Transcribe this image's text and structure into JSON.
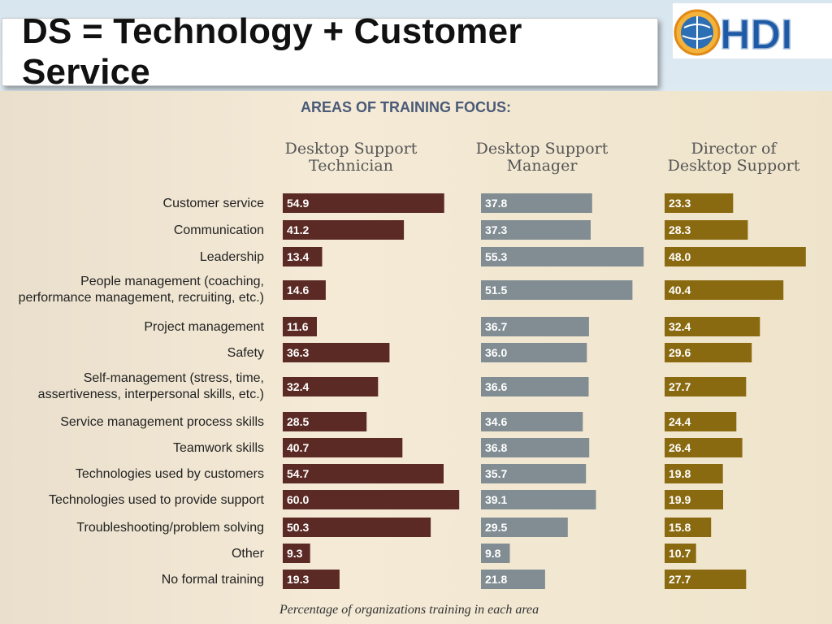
{
  "slide": {
    "title": "DS = Technology + Customer Service",
    "logo_text": "HDI"
  },
  "colors": {
    "technician": "#5b2a24",
    "manager": "#818d92",
    "director": "#8a6a10",
    "heading": "#4a5a78"
  },
  "chart_data": {
    "type": "bar",
    "orientation": "horizontal",
    "title": "AREAS OF TRAINING FOCUS:",
    "footnote": "Percentage of organizations training in each area",
    "categories": [
      [
        "Customer service"
      ],
      [
        "Communication"
      ],
      [
        "Leadership"
      ],
      [
        "People management (coaching,",
        "performance management, recruiting, etc.)"
      ],
      [
        "Project management"
      ],
      [
        "Safety"
      ],
      [
        "Self-management (stress, time,",
        "assertiveness, interpersonal skills, etc.)"
      ],
      [
        "Service management process skills"
      ],
      [
        "Teamwork skills"
      ],
      [
        "Technologies used by customers"
      ],
      [
        "Technologies used to provide support"
      ],
      [
        "Troubleshooting/problem solving"
      ],
      [
        "Other"
      ],
      [
        "No formal training"
      ]
    ],
    "series": [
      {
        "name": [
          "Desktop Support",
          "Technician"
        ],
        "color": "#5b2a24",
        "values": [
          54.9,
          41.2,
          13.4,
          14.6,
          11.6,
          36.3,
          32.4,
          28.5,
          40.7,
          54.7,
          60.0,
          50.3,
          9.3,
          19.3
        ],
        "labels": [
          "54.9",
          "41.2",
          "13.4",
          "14.6",
          "11.6",
          "36.3",
          "32.4",
          "28.5",
          "40.7",
          "54.7",
          "60.0",
          "50.3",
          "9.3",
          "19.3"
        ]
      },
      {
        "name": [
          "Desktop Support",
          "Manager"
        ],
        "color": "#818d92",
        "values": [
          37.8,
          37.3,
          55.3,
          51.5,
          36.7,
          36.0,
          36.6,
          34.6,
          36.8,
          35.7,
          39.1,
          29.5,
          9.8,
          21.8
        ],
        "labels": [
          "37.8",
          "37.3",
          "55.3",
          "51.5",
          "36.7",
          "36.0",
          "36.6",
          "34.6",
          "36.8",
          "35.7",
          "39.1",
          "29.5",
          "9.8",
          "21.8"
        ]
      },
      {
        "name": [
          "Director of",
          "Desktop Support"
        ],
        "color": "#8a6a10",
        "values": [
          23.3,
          28.3,
          48.0,
          40.4,
          32.4,
          29.6,
          27.7,
          24.4,
          26.4,
          19.8,
          19.9,
          15.8,
          10.7,
          27.7
        ],
        "labels": [
          "23.3",
          "28.3",
          "48.0",
          "40.4",
          "32.4",
          "29.6",
          "27.7",
          "24.4",
          "26.4",
          "19.8",
          "19.9",
          "15.8",
          "10.7",
          "27.7"
        ]
      }
    ],
    "grid": false,
    "legend": "column headers above bars"
  }
}
